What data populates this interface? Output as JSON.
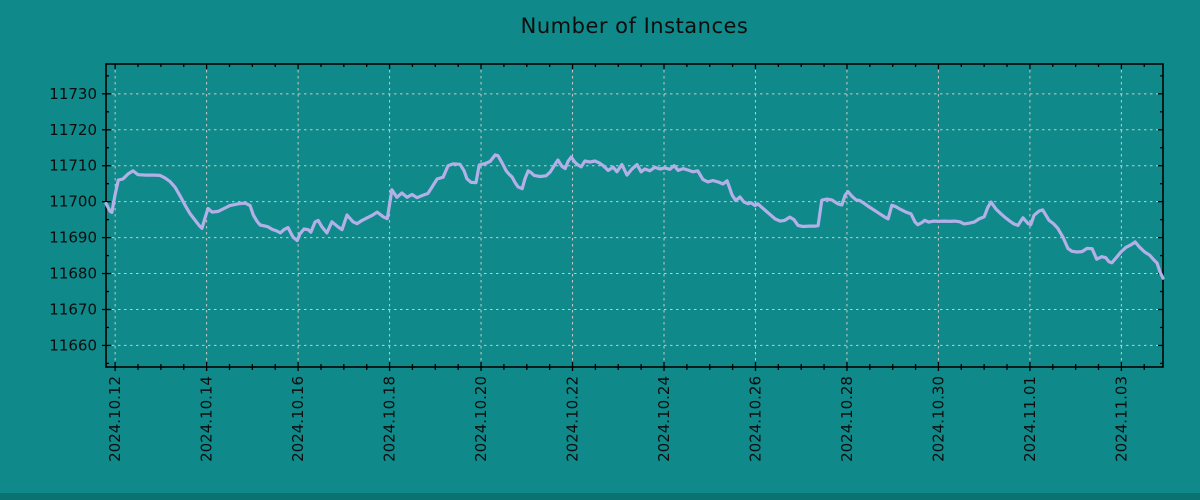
{
  "chart_data": {
    "type": "line",
    "title": "Number of Instances",
    "series_name": "number-of-instances",
    "legend": "none",
    "grid": true,
    "colors": {
      "background": "#0f8989",
      "line": "#b3b0e8",
      "grid": "#c9c9c9",
      "axis": "#000000",
      "text": "#0d0d0d",
      "bottom_strip": "#0b7272"
    },
    "x_axis": {
      "unit": "days_since_2024.10.12",
      "lim": [
        -0.2,
        22.91
      ],
      "tick_days": [
        0,
        2,
        4,
        6,
        8,
        10,
        12,
        14,
        16,
        18,
        20,
        22
      ],
      "tick_labels": [
        "2024.10.12",
        "2024.10.14",
        "2024.10.16",
        "2024.10.18",
        "2024.10.20",
        "2024.10.22",
        "2024.10.24",
        "2024.10.26",
        "2024.10.28",
        "2024.10.30",
        "2024.11.01",
        "2024.11.03"
      ],
      "minor_step": 0.5
    },
    "y_axis": {
      "lim": [
        11654,
        11738.3
      ],
      "ticks": [
        11660,
        11670,
        11680,
        11690,
        11700,
        11710,
        11720,
        11730
      ],
      "minor_step": 5
    },
    "points": [
      [
        -0.2,
        11699.5
      ],
      [
        -0.11,
        11697.3
      ],
      [
        -0.07,
        11697.0
      ],
      [
        0,
        11702
      ],
      [
        0.07,
        11706
      ],
      [
        0.17,
        11706.3
      ],
      [
        0.28,
        11707.7
      ],
      [
        0.39,
        11708.6
      ],
      [
        0.5,
        11707.5
      ],
      [
        0.68,
        11707.4
      ],
      [
        0.85,
        11707.4
      ],
      [
        0.98,
        11707.3
      ],
      [
        1.09,
        11706.6
      ],
      [
        1.2,
        11705.6
      ],
      [
        1.31,
        11704
      ],
      [
        1.42,
        11701.6
      ],
      [
        1.53,
        11699
      ],
      [
        1.64,
        11696.6
      ],
      [
        1.75,
        11694.8
      ],
      [
        1.84,
        11693.3
      ],
      [
        1.9,
        11692.6
      ],
      [
        1.97,
        11695.7
      ],
      [
        2.03,
        11698.1
      ],
      [
        2.12,
        11697.1
      ],
      [
        2.25,
        11697.3
      ],
      [
        2.38,
        11698.1
      ],
      [
        2.51,
        11698.9
      ],
      [
        2.69,
        11699.4
      ],
      [
        2.84,
        11699.6
      ],
      [
        2.95,
        11698.9
      ],
      [
        3.02,
        11696.3
      ],
      [
        3.1,
        11694.6
      ],
      [
        3.17,
        11693.5
      ],
      [
        3.28,
        11693.2
      ],
      [
        3.34,
        11693
      ],
      [
        3.43,
        11692.3
      ],
      [
        3.54,
        11691.8
      ],
      [
        3.61,
        11691.3
      ],
      [
        3.69,
        11692.2
      ],
      [
        3.78,
        11692.8
      ],
      [
        3.89,
        11690.1
      ],
      [
        3.98,
        11689.2
      ],
      [
        4.04,
        11691
      ],
      [
        4.13,
        11692.4
      ],
      [
        4.22,
        11692.2
      ],
      [
        4.28,
        11691.5
      ],
      [
        4.37,
        11694.3
      ],
      [
        4.44,
        11694.8
      ],
      [
        4.52,
        11693
      ],
      [
        4.63,
        11691.3
      ],
      [
        4.74,
        11694.4
      ],
      [
        4.87,
        11693
      ],
      [
        4.96,
        11692.2
      ],
      [
        5.07,
        11696.3
      ],
      [
        5.2,
        11694.4
      ],
      [
        5.29,
        11693.9
      ],
      [
        5.4,
        11694.8
      ],
      [
        5.51,
        11695.5
      ],
      [
        5.62,
        11696.2
      ],
      [
        5.73,
        11697.1
      ],
      [
        5.86,
        11695.8
      ],
      [
        5.95,
        11695.3
      ],
      [
        6.05,
        11703.3
      ],
      [
        6.16,
        11701.2
      ],
      [
        6.27,
        11702.4
      ],
      [
        6.38,
        11701.2
      ],
      [
        6.49,
        11702
      ],
      [
        6.6,
        11701.1
      ],
      [
        6.73,
        11701.8
      ],
      [
        6.84,
        11702.3
      ],
      [
        6.95,
        11704.5
      ],
      [
        7.04,
        11706.3
      ],
      [
        7.17,
        11706.8
      ],
      [
        7.28,
        11710
      ],
      [
        7.39,
        11710.5
      ],
      [
        7.54,
        11710.4
      ],
      [
        7.63,
        11708.6
      ],
      [
        7.69,
        11706.4
      ],
      [
        7.78,
        11705.4
      ],
      [
        7.89,
        11705.3
      ],
      [
        7.96,
        11710.2
      ],
      [
        8.09,
        11710.6
      ],
      [
        8.2,
        11711.2
      ],
      [
        8.31,
        11713
      ],
      [
        8.37,
        11712.8
      ],
      [
        8.46,
        11710.8
      ],
      [
        8.55,
        11708.6
      ],
      [
        8.61,
        11707.7
      ],
      [
        8.68,
        11706.8
      ],
      [
        8.74,
        11705.4
      ],
      [
        8.81,
        11704.1
      ],
      [
        8.9,
        11703.6
      ],
      [
        8.96,
        11706.4
      ],
      [
        9.03,
        11708.6
      ],
      [
        9.09,
        11708.1
      ],
      [
        9.16,
        11707.3
      ],
      [
        9.29,
        11707
      ],
      [
        9.42,
        11707.2
      ],
      [
        9.51,
        11708.2
      ],
      [
        9.6,
        11710
      ],
      [
        9.68,
        11711.6
      ],
      [
        9.77,
        11709.8
      ],
      [
        9.84,
        11709.2
      ],
      [
        9.9,
        11711.2
      ],
      [
        9.97,
        11712.4
      ],
      [
        10.05,
        11711
      ],
      [
        10.12,
        11710.2
      ],
      [
        10.19,
        11709.7
      ],
      [
        10.27,
        11711.3
      ],
      [
        10.38,
        11711
      ],
      [
        10.49,
        11711.3
      ],
      [
        10.58,
        11710.8
      ],
      [
        10.67,
        11710
      ],
      [
        10.78,
        11708.7
      ],
      [
        10.89,
        11709.6
      ],
      [
        10.97,
        11708.3
      ],
      [
        11.08,
        11710.3
      ],
      [
        11.19,
        11707.4
      ],
      [
        11.3,
        11709.1
      ],
      [
        11.41,
        11710.3
      ],
      [
        11.5,
        11708.3
      ],
      [
        11.58,
        11709.1
      ],
      [
        11.69,
        11708.6
      ],
      [
        11.8,
        11709.6
      ],
      [
        11.91,
        11709.1
      ],
      [
        12.02,
        11709.4
      ],
      [
        12.13,
        11709
      ],
      [
        12.22,
        11710
      ],
      [
        12.31,
        11708.7
      ],
      [
        12.42,
        11709.2
      ],
      [
        12.52,
        11708.8
      ],
      [
        12.63,
        11708.3
      ],
      [
        12.74,
        11708.6
      ],
      [
        12.85,
        11706.2
      ],
      [
        12.96,
        11705.5
      ],
      [
        13.07,
        11705.9
      ],
      [
        13.18,
        11705.5
      ],
      [
        13.29,
        11704.9
      ],
      [
        13.38,
        11705.8
      ],
      [
        13.49,
        11701.8
      ],
      [
        13.57,
        11700.3
      ],
      [
        13.66,
        11701.3
      ],
      [
        13.75,
        11699.9
      ],
      [
        13.84,
        11699.4
      ],
      [
        13.9,
        11699.7
      ],
      [
        13.99,
        11698.9
      ],
      [
        14.05,
        11699.4
      ],
      [
        14.14,
        11698.4
      ],
      [
        14.23,
        11697.4
      ],
      [
        14.32,
        11696.4
      ],
      [
        14.43,
        11695.2
      ],
      [
        14.54,
        11694.6
      ],
      [
        14.64,
        11694.8
      ],
      [
        14.75,
        11695.7
      ],
      [
        14.84,
        11695
      ],
      [
        14.93,
        11693.4
      ],
      [
        15.04,
        11693.1
      ],
      [
        15.17,
        11693.2
      ],
      [
        15.3,
        11693.2
      ],
      [
        15.37,
        11693.3
      ],
      [
        15.45,
        11700.4
      ],
      [
        15.56,
        11700.7
      ],
      [
        15.67,
        11700.5
      ],
      [
        15.8,
        11699.4
      ],
      [
        15.89,
        11699.1
      ],
      [
        15.96,
        11701.8
      ],
      [
        16.02,
        11702.8
      ],
      [
        16.11,
        11701.5
      ],
      [
        16.2,
        11700.5
      ],
      [
        16.28,
        11700.3
      ],
      [
        16.39,
        11699.4
      ],
      [
        16.5,
        11698.4
      ],
      [
        16.61,
        11697.5
      ],
      [
        16.72,
        11696.6
      ],
      [
        16.83,
        11695.7
      ],
      [
        16.9,
        11695.2
      ],
      [
        16.98,
        11699
      ],
      [
        17.07,
        11698.6
      ],
      [
        17.18,
        11697.8
      ],
      [
        17.29,
        11697.1
      ],
      [
        17.4,
        11696.6
      ],
      [
        17.49,
        11694.3
      ],
      [
        17.55,
        11693.6
      ],
      [
        17.64,
        11694.2
      ],
      [
        17.7,
        11694.8
      ],
      [
        17.79,
        11694.3
      ],
      [
        17.9,
        11694.6
      ],
      [
        18.01,
        11694.5
      ],
      [
        18.12,
        11694.6
      ],
      [
        18.25,
        11694.5
      ],
      [
        18.36,
        11694.6
      ],
      [
        18.47,
        11694.4
      ],
      [
        18.56,
        11693.8
      ],
      [
        18.67,
        11694
      ],
      [
        18.78,
        11694.3
      ],
      [
        18.89,
        11695.2
      ],
      [
        19,
        11695.8
      ],
      [
        19.08,
        11698.4
      ],
      [
        19.15,
        11699.9
      ],
      [
        19.26,
        11697.9
      ],
      [
        19.37,
        11696.6
      ],
      [
        19.45,
        11695.7
      ],
      [
        19.54,
        11694.8
      ],
      [
        19.65,
        11693.8
      ],
      [
        19.74,
        11693.4
      ],
      [
        19.85,
        11695.5
      ],
      [
        19.96,
        11693.9
      ],
      [
        20.02,
        11693.6
      ],
      [
        20.09,
        11696.2
      ],
      [
        20.2,
        11697.4
      ],
      [
        20.28,
        11697.7
      ],
      [
        20.42,
        11694.8
      ],
      [
        20.52,
        11693.8
      ],
      [
        20.61,
        11692.6
      ],
      [
        20.72,
        11690.2
      ],
      [
        20.83,
        11687
      ],
      [
        20.92,
        11686.2
      ],
      [
        21.03,
        11686
      ],
      [
        21.14,
        11686.1
      ],
      [
        21.25,
        11687
      ],
      [
        21.36,
        11686.9
      ],
      [
        21.46,
        11684
      ],
      [
        21.57,
        11684.7
      ],
      [
        21.66,
        11684.4
      ],
      [
        21.73,
        11683.3
      ],
      [
        21.79,
        11683
      ],
      [
        21.88,
        11684.3
      ],
      [
        21.99,
        11686
      ],
      [
        22.1,
        11687.3
      ],
      [
        22.21,
        11688
      ],
      [
        22.3,
        11688.8
      ],
      [
        22.4,
        11687.3
      ],
      [
        22.51,
        11686
      ],
      [
        22.62,
        11685.1
      ],
      [
        22.71,
        11683.8
      ],
      [
        22.78,
        11682.9
      ],
      [
        22.84,
        11680.6
      ],
      [
        22.91,
        11678.7
      ]
    ]
  }
}
